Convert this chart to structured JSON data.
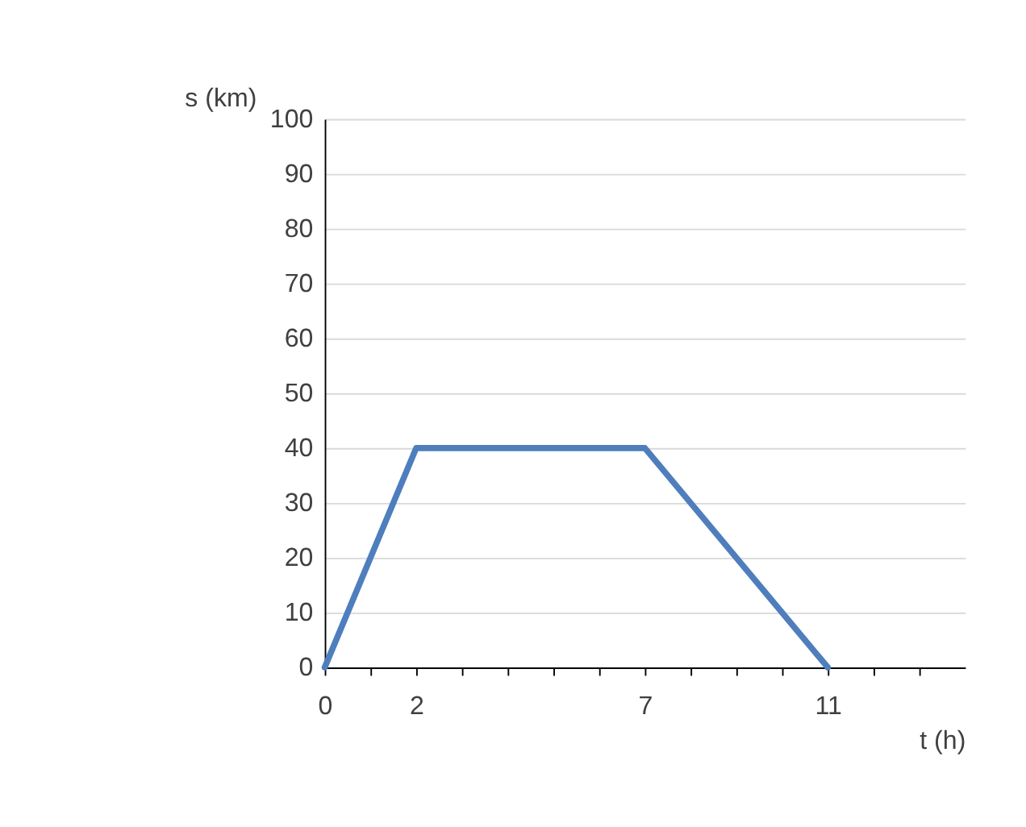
{
  "chart_data": {
    "type": "line",
    "xlabel": "t (h)",
    "ylabel": "s (km)",
    "x": [
      0,
      2,
      7,
      11
    ],
    "series": [
      {
        "color": "#4f7ebd",
        "values": [
          0,
          40,
          40,
          0
        ]
      }
    ],
    "xlim": [
      0,
      14
    ],
    "xticks": [
      0,
      {
        "value": 1,
        "label": null
      },
      2,
      {
        "value": 3,
        "label": null
      },
      {
        "value": 4,
        "label": null
      },
      {
        "value": 5,
        "label": null
      },
      {
        "value": 6,
        "label": null
      },
      7,
      {
        "value": 8,
        "label": null
      },
      {
        "value": 9,
        "label": null
      },
      {
        "value": 10,
        "label": null
      },
      11,
      {
        "value": 12,
        "label": null
      },
      {
        "value": 13,
        "label": null
      }
    ],
    "ylim": [
      0,
      100
    ],
    "yticks": [
      0,
      10,
      20,
      30,
      40,
      50,
      60,
      70,
      80,
      90,
      100
    ],
    "grid": "y",
    "marker": "none",
    "line_style": "solid"
  }
}
